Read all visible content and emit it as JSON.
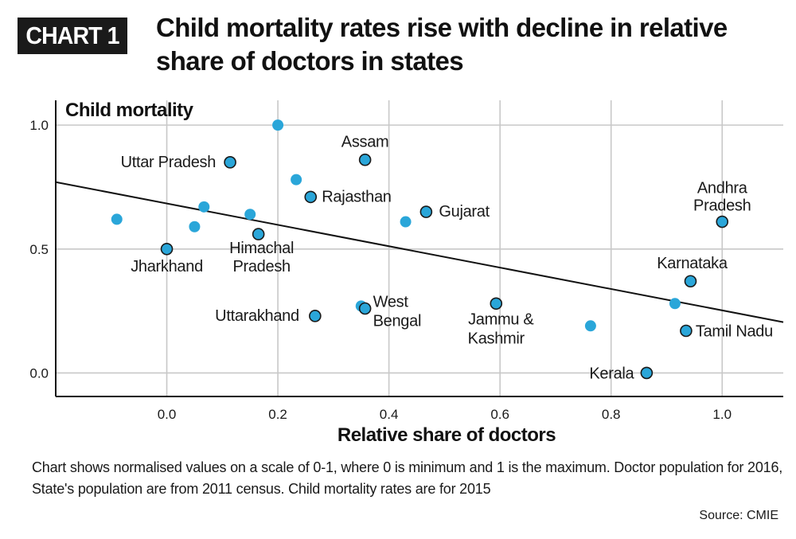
{
  "badge": "CHART 1",
  "title": "Child mortality rates rise with decline in relative share of doctors in states",
  "caption": "Chart shows normalised values on a scale of 0-1, where 0 is minimum and 1 is the maximum. Doctor population for 2016, State's population are from 2011 census. Child mortality rates are for 2015",
  "source": "Source: CMIE",
  "colors": {
    "point": "#2aa6d9",
    "outline": "#1a1a1a",
    "grid": "#c8c8c8",
    "trend": "#111111"
  },
  "chart_data": {
    "type": "scatter",
    "xlabel": "Relative share of doctors",
    "ylabel": "Child mortality",
    "xlim": [
      -0.2,
      1.11
    ],
    "ylim": [
      -0.095,
      1.1
    ],
    "xticks": [
      0.0,
      0.2,
      0.4,
      0.6,
      0.8,
      1.0
    ],
    "xtick_labels": [
      "0.0",
      "0.2",
      "0.4",
      "0.6",
      "0.8",
      "1.0"
    ],
    "yticks": [
      0.0,
      0.5,
      1.0
    ],
    "ytick_labels": [
      "0.0",
      "0.5",
      "1.0"
    ],
    "grid": true,
    "trend_line": {
      "x": [
        -0.2,
        1.11
      ],
      "y": [
        0.77,
        0.205
      ]
    },
    "points": [
      {
        "x": -0.09,
        "y": 0.62,
        "label": "",
        "outlined": false
      },
      {
        "x": 0.0,
        "y": 0.5,
        "label": "Jharkhand",
        "outlined": true
      },
      {
        "x": 0.05,
        "y": 0.59,
        "label": "",
        "outlined": false
      },
      {
        "x": 0.067,
        "y": 0.67,
        "label": "",
        "outlined": false
      },
      {
        "x": 0.114,
        "y": 0.85,
        "label": "Uttar Pradesh",
        "outlined": true
      },
      {
        "x": 0.15,
        "y": 0.64,
        "label": "",
        "outlined": false
      },
      {
        "x": 0.165,
        "y": 0.56,
        "label": "Himachal Pradesh",
        "outlined": true
      },
      {
        "x": 0.2,
        "y": 1.0,
        "label": "",
        "outlined": false
      },
      {
        "x": 0.233,
        "y": 0.78,
        "label": "",
        "outlined": false
      },
      {
        "x": 0.259,
        "y": 0.71,
        "label": "Rajasthan",
        "outlined": true
      },
      {
        "x": 0.267,
        "y": 0.23,
        "label": "Uttarakhand",
        "outlined": true
      },
      {
        "x": 0.35,
        "y": 0.27,
        "label": "",
        "outlined": false
      },
      {
        "x": 0.357,
        "y": 0.26,
        "label": "West Bengal",
        "outlined": true
      },
      {
        "x": 0.357,
        "y": 0.86,
        "label": "Assam",
        "outlined": true
      },
      {
        "x": 0.43,
        "y": 0.61,
        "label": "",
        "outlined": false
      },
      {
        "x": 0.467,
        "y": 0.65,
        "label": "Gujarat",
        "outlined": true
      },
      {
        "x": 0.593,
        "y": 0.28,
        "label": "Jammu & Kashmir",
        "outlined": true
      },
      {
        "x": 0.763,
        "y": 0.19,
        "label": "",
        "outlined": false
      },
      {
        "x": 0.864,
        "y": 0.0,
        "label": "Kerala",
        "outlined": true
      },
      {
        "x": 0.915,
        "y": 0.28,
        "label": "",
        "outlined": false
      },
      {
        "x": 0.935,
        "y": 0.17,
        "label": "Tamil Nadu",
        "outlined": true
      },
      {
        "x": 0.943,
        "y": 0.37,
        "label": "Karnataka",
        "outlined": true
      },
      {
        "x": 1.0,
        "y": 0.61,
        "label": "Andhra Pradesh",
        "outlined": true
      }
    ]
  }
}
